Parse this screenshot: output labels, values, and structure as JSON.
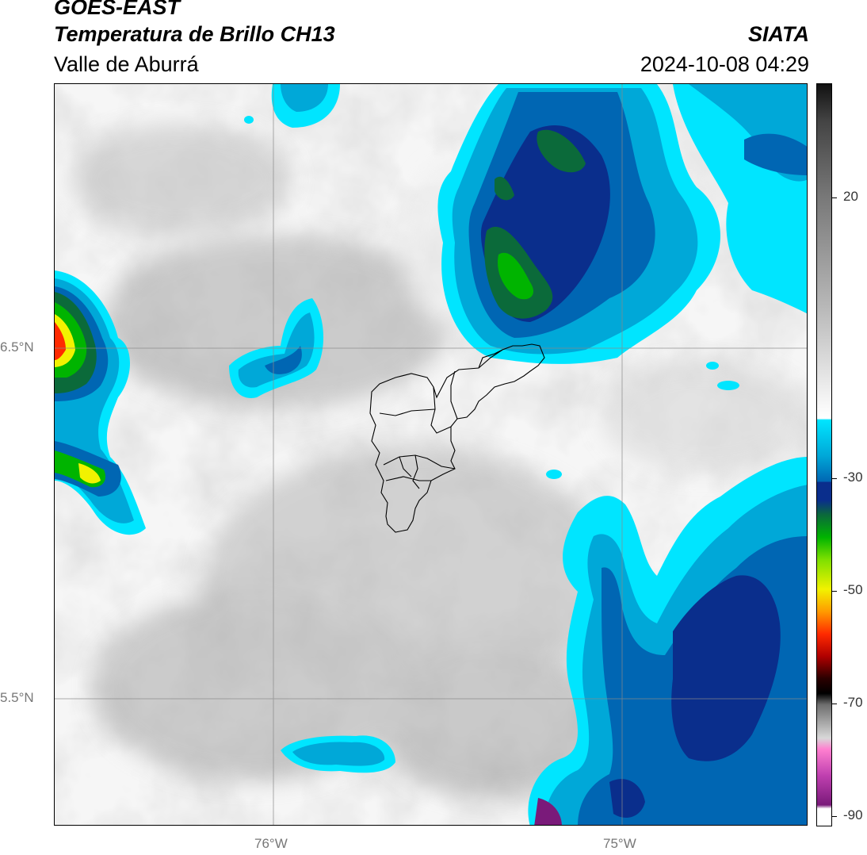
{
  "header": {
    "title_line1": "GOES-EAST",
    "title_line2": "Temperatura de Brillo CH13",
    "subtitle": "Valle de Aburrá",
    "brand": "SIATA",
    "timestamp": "2024-10-08 04:29"
  },
  "map": {
    "lat_labels": [
      "6.5°N",
      "5.5°N"
    ],
    "lon_labels": [
      "76°W",
      "75°W"
    ]
  },
  "colorbar": {
    "ticks": [
      "20",
      "-30",
      "-50",
      "-70",
      "-90"
    ],
    "colors": [
      "#1a1a1a",
      "#555555",
      "#9a9a9a",
      "#d6d6d6",
      "#f4f4f4",
      "#00e5ff",
      "#00a8d8",
      "#0066b3",
      "#0a2e8c",
      "#0b6a3a",
      "#00b400",
      "#7ee000",
      "#f2f200",
      "#ff9a00",
      "#ff2a00",
      "#b00000",
      "#2a0000",
      "#8a8a8a",
      "#c8c8c8",
      "#ff80d0",
      "#c040b0",
      "#7a1a7a",
      "#ffffff"
    ]
  }
}
